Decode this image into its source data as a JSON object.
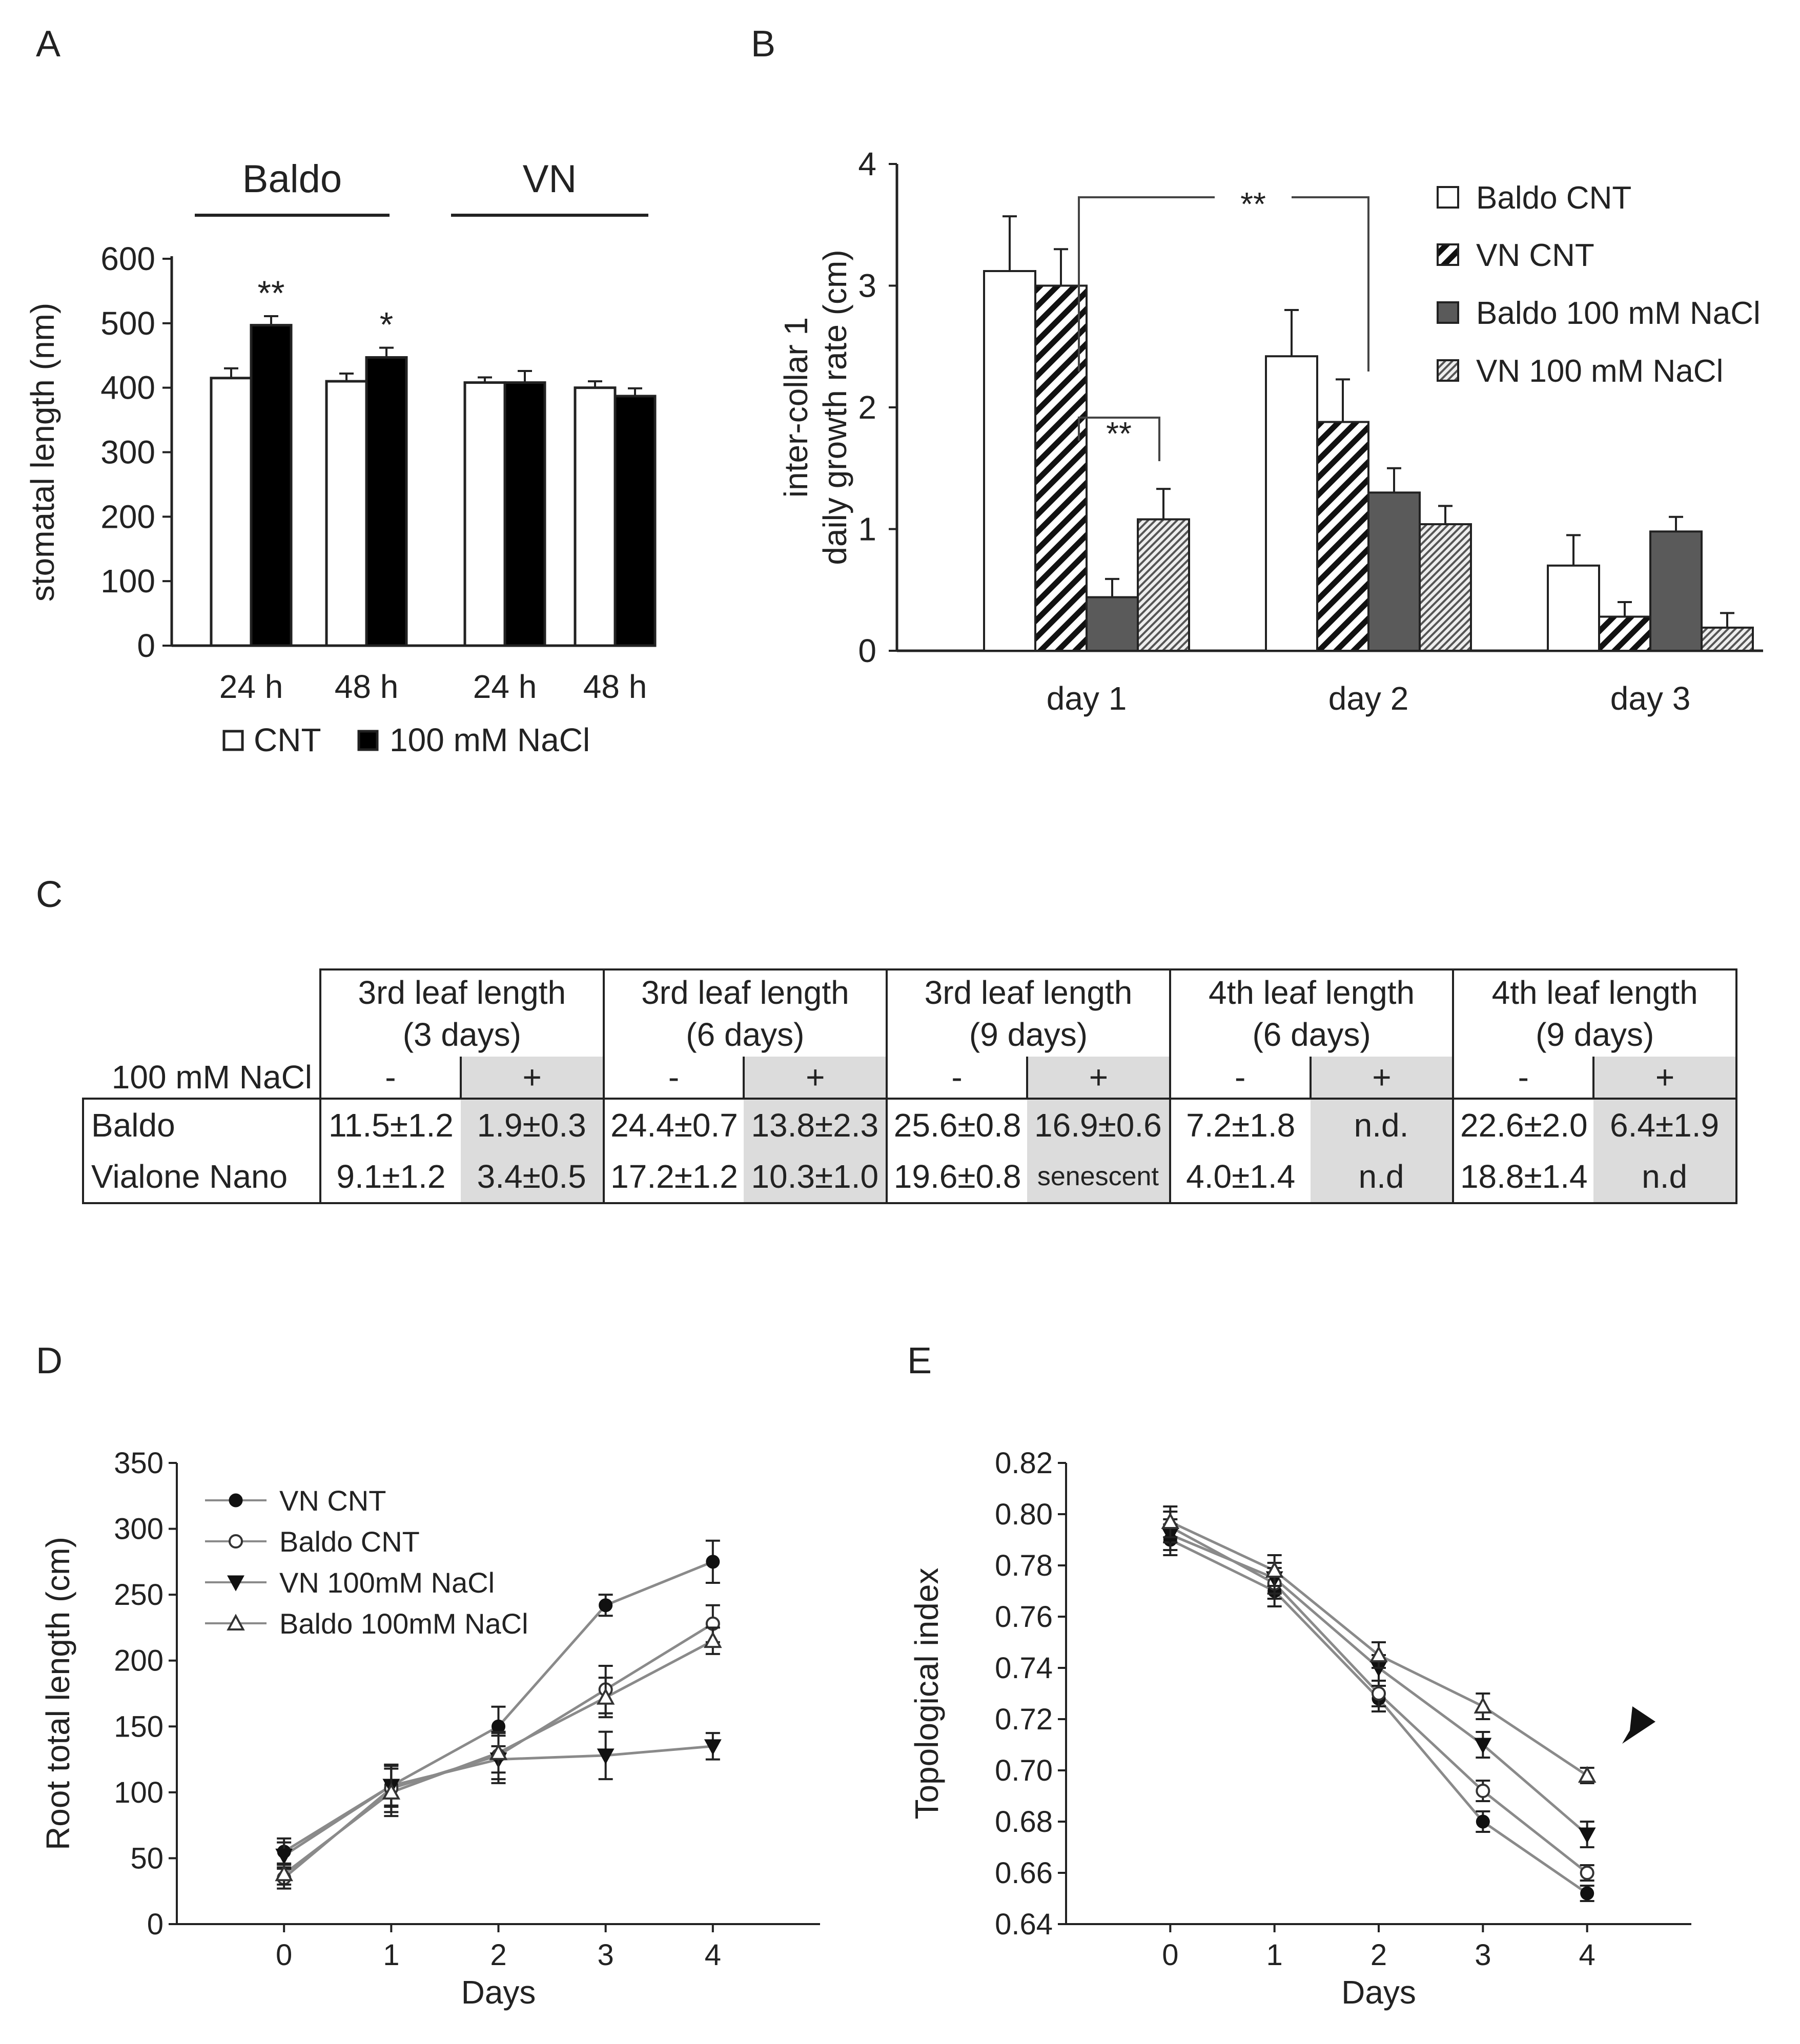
{
  "panels": {
    "A": {
      "letter": "A"
    },
    "B": {
      "letter": "B"
    },
    "C": {
      "letter": "C"
    },
    "D": {
      "letter": "D"
    },
    "E": {
      "letter": "E"
    }
  },
  "chart_data": [
    {
      "panel": "A",
      "type": "bar",
      "ylabel": "stomatal length (nm)",
      "ylim": [
        0,
        600
      ],
      "yticks": [
        0,
        100,
        200,
        300,
        400,
        500,
        600
      ],
      "group_labels": [
        "Baldo",
        "VN"
      ],
      "categories": [
        "24 h",
        "48 h",
        "24 h",
        "48 h"
      ],
      "series": [
        {
          "name": "CNT",
          "color": "#ffffff",
          "values": [
            415,
            410,
            408,
            400
          ],
          "errors": [
            15,
            12,
            8,
            10
          ]
        },
        {
          "name": "100 mM NaCl",
          "color": "#000000",
          "values": [
            497,
            447,
            408,
            387
          ],
          "errors": [
            14,
            15,
            18,
            12
          ]
        }
      ],
      "annotations": [
        "**",
        "*"
      ],
      "legend": [
        "CNT",
        "100 mM NaCl"
      ]
    },
    {
      "panel": "B",
      "type": "bar",
      "ylabel": "inter-collar 1\ndaily growth rate (cm)",
      "ylabel_lines": [
        "inter-collar 1",
        "daily growth rate (cm)"
      ],
      "ylim": [
        0,
        4
      ],
      "yticks": [
        0,
        1,
        2,
        3,
        4
      ],
      "categories": [
        "day 1",
        "day 2",
        "day 3"
      ],
      "series": [
        {
          "name": "Baldo CNT",
          "pattern": "white",
          "values": [
            3.12,
            2.42,
            0.7
          ],
          "errors": [
            0.45,
            0.38,
            0.25
          ]
        },
        {
          "name": "VN CNT",
          "pattern": "hatch",
          "values": [
            3.0,
            1.88,
            0.28
          ],
          "errors": [
            0.3,
            0.35,
            0.12
          ]
        },
        {
          "name": "Baldo 100 mM NaCl",
          "pattern": "gray",
          "values": [
            0.44,
            1.3,
            0.98
          ],
          "errors": [
            0.15,
            0.2,
            0.12
          ]
        },
        {
          "name": "VN 100 mM NaCl",
          "pattern": "finehatch",
          "values": [
            1.08,
            1.04,
            0.19
          ],
          "errors": [
            0.25,
            0.15,
            0.12
          ]
        }
      ],
      "annotations": [
        "**",
        "**"
      ],
      "legend": [
        "Baldo CNT",
        "VN CNT",
        "Baldo 100 mM NaCl",
        "VN 100 mM NaCl"
      ]
    },
    {
      "panel": "C",
      "type": "table",
      "nacl_label": "100 mM NaCl",
      "headers": [
        {
          "l1": "3rd leaf length",
          "l2": "(3 days)"
        },
        {
          "l1": "3rd leaf length",
          "l2": "(6 days)"
        },
        {
          "l1": "3rd leaf length",
          "l2": "(9 days)"
        },
        {
          "l1": "4th leaf length",
          "l2": "(6 days)"
        },
        {
          "l1": "4th leaf length",
          "l2": "(9 days)"
        }
      ],
      "signs": [
        "-",
        "+"
      ],
      "rows": [
        {
          "label": "Baldo",
          "cells": [
            "11.5±1.2",
            "1.9±0.3",
            "24.4±0.7",
            "13.8±2.3",
            "25.6±0.8",
            "16.9±0.6",
            "7.2±1.8",
            "n.d.",
            "22.6±2.0",
            "6.4±1.9"
          ]
        },
        {
          "label": "Vialone Nano",
          "cells": [
            "9.1±1.2",
            "3.4±0.5",
            "17.2±1.2",
            "10.3±1.0",
            "19.6±0.8",
            "senescent",
            "4.0±1.4",
            "n.d",
            "18.8±1.4",
            "n.d"
          ]
        }
      ]
    },
    {
      "panel": "D",
      "type": "line",
      "xlabel": "Days",
      "ylabel": "Root total length (cm)",
      "x": [
        0,
        1,
        2,
        3,
        4
      ],
      "xlim": [
        -1,
        5
      ],
      "ylim": [
        0,
        350
      ],
      "yticks": [
        0,
        50,
        100,
        150,
        200,
        250,
        300,
        350
      ],
      "series": [
        {
          "name": "VN CNT",
          "marker": "filled-circle",
          "values": [
            55,
            105,
            150,
            242,
            275
          ],
          "errors": [
            10,
            15,
            15,
            8,
            16
          ]
        },
        {
          "name": "Baldo CNT",
          "marker": "open-circle",
          "values": [
            35,
            103,
            128,
            178,
            228
          ],
          "errors": [
            8,
            18,
            18,
            18,
            14
          ]
        },
        {
          "name": "VN 100mM NaCl",
          "marker": "filled-triangle-down",
          "values": [
            52,
            105,
            125,
            128,
            135
          ],
          "errors": [
            10,
            16,
            18,
            18,
            10
          ]
        },
        {
          "name": "Baldo 100mM NaCl",
          "marker": "open-triangle-up",
          "values": [
            38,
            100,
            130,
            172,
            215
          ],
          "errors": [
            8,
            18,
            15,
            15,
            10
          ]
        }
      ],
      "legend": [
        "VN CNT",
        "Baldo CNT",
        "VN 100mM NaCl",
        "Baldo 100mM NaCl"
      ]
    },
    {
      "panel": "E",
      "type": "line",
      "xlabel": "Days",
      "ylabel": "Topological index",
      "x": [
        0,
        1,
        2,
        3,
        4
      ],
      "xlim": [
        -1,
        5
      ],
      "ylim": [
        0.64,
        0.82
      ],
      "yticks": [
        "0.64",
        "0.66",
        "0.68",
        "0.70",
        "0.72",
        "0.74",
        "0.76",
        "0.78",
        "0.80",
        "0.82"
      ],
      "series": [
        {
          "name": "VN CNT",
          "marker": "filled-circle",
          "values": [
            0.79,
            0.77,
            0.728,
            0.68,
            0.652
          ],
          "errors": [
            0.006,
            0.006,
            0.005,
            0.004,
            0.003
          ]
        },
        {
          "name": "Baldo CNT",
          "marker": "open-circle",
          "values": [
            0.795,
            0.773,
            0.73,
            0.692,
            0.66
          ],
          "errors": [
            0.006,
            0.006,
            0.005,
            0.004,
            0.003
          ]
        },
        {
          "name": "VN 100mM NaCl",
          "marker": "filled-triangle-down",
          "values": [
            0.792,
            0.775,
            0.74,
            0.71,
            0.675
          ],
          "errors": [
            0.006,
            0.006,
            0.005,
            0.005,
            0.005
          ]
        },
        {
          "name": "Baldo 100mM NaCl",
          "marker": "open-triangle-up",
          "values": [
            0.797,
            0.778,
            0.745,
            0.725,
            0.698
          ],
          "errors": [
            0.006,
            0.006,
            0.005,
            0.005,
            0.003
          ]
        }
      ],
      "annotations": [
        "arrowhead"
      ]
    }
  ]
}
